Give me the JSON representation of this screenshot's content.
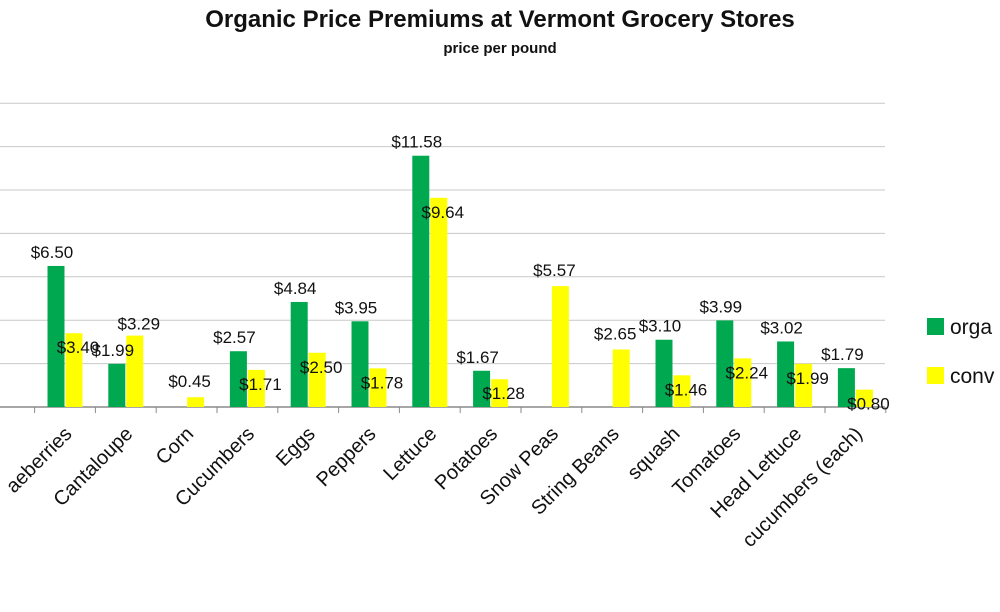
{
  "chart_data": {
    "type": "bar",
    "title": "Organic Price Premiums at Vermont Grocery Stores",
    "subtitle": "price per pound",
    "categories": [
      "Blueberries",
      "Cantaloupe",
      "Corn",
      "Cucumbers",
      "Eggs",
      "Peppers",
      "Lettuce",
      "Potatoes",
      "Snow Peas",
      "String Beans",
      "squash",
      "Tomatoes",
      "Head Lettuce",
      "cucumbers (each)"
    ],
    "category_labels": [
      "aeberries",
      "Cantaloupe",
      "Corn",
      "Cucumbers",
      "Eggs",
      "Peppers",
      "Lettuce",
      "Potatoes",
      "Snow Peas",
      "String Beans",
      "squash",
      "Tomatoes",
      "Head Lettuce",
      "cucumbers (each)"
    ],
    "series": [
      {
        "name": "organic",
        "legend_label": "orga",
        "color": "#00a84f",
        "values": [
          6.5,
          1.99,
          null,
          2.57,
          4.84,
          3.95,
          11.58,
          1.67,
          null,
          null,
          3.1,
          3.99,
          3.02,
          1.79
        ],
        "labels": [
          "$6.50",
          "$1.99",
          "",
          "$2.57",
          "$4.84",
          "$3.95",
          "$11.58",
          "$1.67",
          "",
          "",
          "$3.10",
          "$3.99",
          "$3.02",
          "$1.79"
        ]
      },
      {
        "name": "conventional",
        "legend_label": "conv",
        "color": "#ffff00",
        "values": [
          3.4,
          3.29,
          0.45,
          1.71,
          2.5,
          1.78,
          9.64,
          1.28,
          5.57,
          2.65,
          1.46,
          2.24,
          1.99,
          0.8
        ],
        "labels": [
          "$3.40",
          "$3.29",
          "$0.45",
          "$1.71",
          "$2.50",
          "$1.78",
          "$9.64",
          "$1.28",
          "$5.57",
          "$2.65",
          "$1.46",
          "$2.24",
          "$1.99",
          "$0.80"
        ]
      }
    ],
    "ylim": [
      0,
      14
    ],
    "grid": true,
    "legend": "right"
  }
}
